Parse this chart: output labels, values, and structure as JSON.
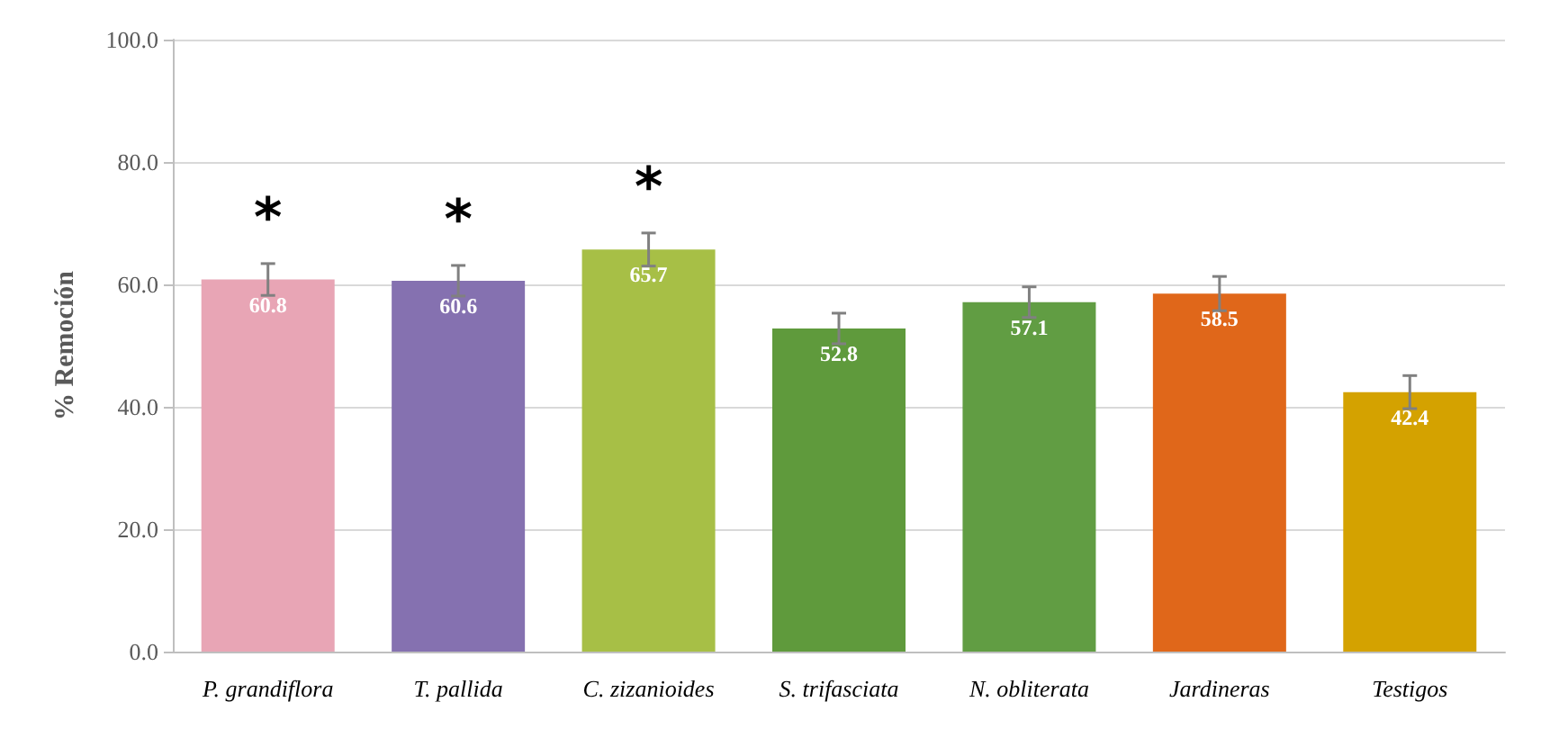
{
  "chart_data": {
    "type": "bar",
    "ylabel": "% Remoción",
    "categories": [
      "P. grandiflora",
      "T. pallida",
      "C. zizanioides",
      "S. trifasciata",
      "N. obliterata",
      "Jardineras",
      "Testigos"
    ],
    "values": [
      60.8,
      60.6,
      65.7,
      52.8,
      57.1,
      58.5,
      42.4
    ],
    "colors": [
      "#e8a5b5",
      "#8571b0",
      "#a7bf46",
      "#5f9a3c",
      "#619d43",
      "#e0671a",
      "#d4a200"
    ],
    "errors": [
      2.6,
      2.5,
      2.7,
      2.5,
      2.5,
      2.8,
      2.7
    ],
    "data_labels": true,
    "ylim": [
      0,
      100
    ],
    "yticks": [
      {
        "value": 0,
        "label": "0.0"
      },
      {
        "value": 20,
        "label": "20.0"
      },
      {
        "value": 40,
        "label": "40.0"
      },
      {
        "value": 60,
        "label": "60.0"
      },
      {
        "value": 80,
        "label": "80.0"
      },
      {
        "value": 100,
        "label": "100.0"
      }
    ],
    "grid": "y",
    "annotations": [
      "*",
      "*",
      "*"
    ]
  }
}
